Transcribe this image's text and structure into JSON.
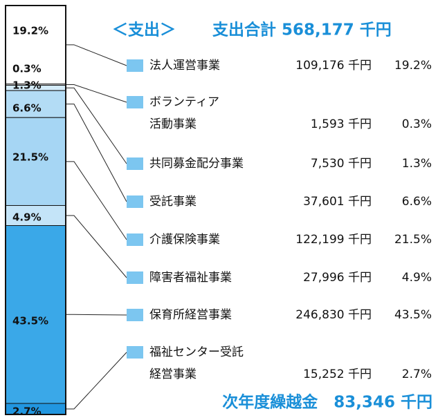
{
  "chart_data": {
    "type": "stacked-bar",
    "title": "＜支出＞",
    "subtitle": "支出合計 568,177 千円",
    "footer": "次年度繰越金　83,346 千円",
    "series": [
      {
        "name": [
          "法人運営事業"
        ],
        "color": "#ffffff",
        "values": [
          19.2
        ],
        "value_labels": [
          "19.2%"
        ],
        "amounts": [
          109176
        ],
        "amount_labels": [
          "109,176 千円"
        ]
      },
      {
        "name": [
          "ボランティア",
          "活動事業"
        ],
        "color": "#ffffff",
        "values": [
          0.3
        ],
        "value_labels": [
          "0.3%"
        ],
        "amounts": [
          1593
        ],
        "amount_labels": [
          "1,593 千円"
        ]
      },
      {
        "name": [
          "共同募金配分事業"
        ],
        "color": "#d4ecfa",
        "values": [
          1.3
        ],
        "value_labels": [
          "1.3%"
        ],
        "amounts": [
          7530
        ],
        "amount_labels": [
          "7,530 千円"
        ]
      },
      {
        "name": [
          "受託事業"
        ],
        "color": "#b3dcf5",
        "values": [
          6.6
        ],
        "value_labels": [
          "6.6%"
        ],
        "amounts": [
          37601
        ],
        "amount_labels": [
          "37,601 千円"
        ]
      },
      {
        "name": [
          "介護保険事業"
        ],
        "color": "#a6d6f4",
        "values": [
          21.5
        ],
        "value_labels": [
          "21.5%"
        ],
        "amounts": [
          122199
        ],
        "amount_labels": [
          "122,199 千円"
        ]
      },
      {
        "name": [
          "障害者福祉事業"
        ],
        "color": "#c4e4f8",
        "values": [
          4.9
        ],
        "value_labels": [
          "4.9%"
        ],
        "amounts": [
          27996
        ],
        "amount_labels": [
          "27,996 千円"
        ]
      },
      {
        "name": [
          "保育所経営事業"
        ],
        "color": "#3aa8e8",
        "values": [
          43.5
        ],
        "value_labels": [
          "43.5%"
        ],
        "amounts": [
          246830
        ],
        "amount_labels": [
          "246,830 千円"
        ]
      },
      {
        "name": [
          "福祉センター受託",
          "経営事業"
        ],
        "color": "#2196e0",
        "values": [
          2.7
        ],
        "value_labels": [
          "2.7%"
        ],
        "amounts": [
          15252
        ],
        "amount_labels": [
          "15,252 千円"
        ]
      }
    ]
  }
}
